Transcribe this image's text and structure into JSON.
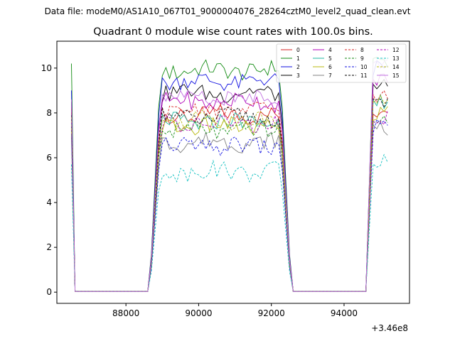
{
  "header": {
    "data_file": "Data file: modeM0/AS1A10_067T01_9000004076_28264cztM0_level2_quad_clean.evt"
  },
  "chart_data": {
    "type": "line",
    "title": "Quadrant 0 module wise count rates with 100.0s bins.",
    "xlabel": "",
    "ylabel": "",
    "x_offset_label": "+3.46e8",
    "xlim": [
      86100,
      95800
    ],
    "ylim": [
      -0.5,
      11.2
    ],
    "x_ticks": [
      88000,
      90000,
      92000,
      94000
    ],
    "x_tick_labels": [
      "88000",
      "90000",
      "92000",
      "94000"
    ],
    "y_ticks": [
      0,
      2,
      4,
      6,
      8,
      10
    ],
    "y_tick_labels": [
      "0",
      "2",
      "4",
      "6",
      "8",
      "10"
    ],
    "grid": false,
    "legend_position": "top-right",
    "segments": [
      {
        "on_start": 88950,
        "on_end": 92250,
        "off_start": 88650,
        "off_end": 92550
      },
      {
        "on_start": 94750,
        "on_end": 95100,
        "off_start": 94650,
        "off_end": 95250
      }
    ],
    "series": [
      {
        "name": "0",
        "color": "#d62020",
        "style": "solid",
        "level": 7.9,
        "start": 8.0,
        "tail": 8.1
      },
      {
        "name": "1",
        "color": "#108a10",
        "style": "solid",
        "level": 9.9,
        "start": 10.2,
        "tail": 10.3
      },
      {
        "name": "2",
        "color": "#1010e0",
        "style": "solid",
        "level": 9.4,
        "start": 9.0,
        "tail": 10.0
      },
      {
        "name": "3",
        "color": "#000000",
        "style": "solid",
        "level": 8.9,
        "start": 8.5,
        "tail": 9.2
      },
      {
        "name": "4",
        "color": "#b000b8",
        "style": "solid",
        "level": 8.5,
        "start": 8.3,
        "tail": 9.5
      },
      {
        "name": "5",
        "color": "#20b8a0",
        "style": "solid",
        "level": 7.6,
        "start": 7.5,
        "tail": 8.5
      },
      {
        "name": "6",
        "color": "#b8b810",
        "style": "solid",
        "level": 7.4,
        "start": 7.3,
        "tail": 8.0
      },
      {
        "name": "7",
        "color": "#808080",
        "style": "solid",
        "level": 6.7,
        "start": 6.9,
        "tail": 7.3
      },
      {
        "name": "8",
        "color": "#d62020",
        "style": "dashed",
        "level": 8.1,
        "start": 8.2,
        "tail": 8.7
      },
      {
        "name": "9",
        "color": "#108a10",
        "style": "dashed",
        "level": 7.2,
        "start": 7.4,
        "tail": 7.6
      },
      {
        "name": "10",
        "color": "#1010e0",
        "style": "dashed",
        "level": 6.5,
        "start": 7.0,
        "tail": 7.4
      },
      {
        "name": "11",
        "color": "#000000",
        "style": "dashed",
        "level": 7.8,
        "start": 7.9,
        "tail": 8.3
      },
      {
        "name": "12",
        "color": "#b000b8",
        "style": "dashed",
        "level": 7.5,
        "start": 7.6,
        "tail": 7.8
      },
      {
        "name": "13",
        "color": "#10c0c0",
        "style": "dashed",
        "level": 5.4,
        "start": 5.7,
        "tail": 5.9
      },
      {
        "name": "14",
        "color": "#b8b810",
        "style": "dashed",
        "level": 7.7,
        "start": 7.8,
        "tail": 8.5
      },
      {
        "name": "15",
        "color": "#c070e0",
        "style": "solid",
        "level": 8.7,
        "start": 8.6,
        "tail": 10.3
      }
    ]
  }
}
